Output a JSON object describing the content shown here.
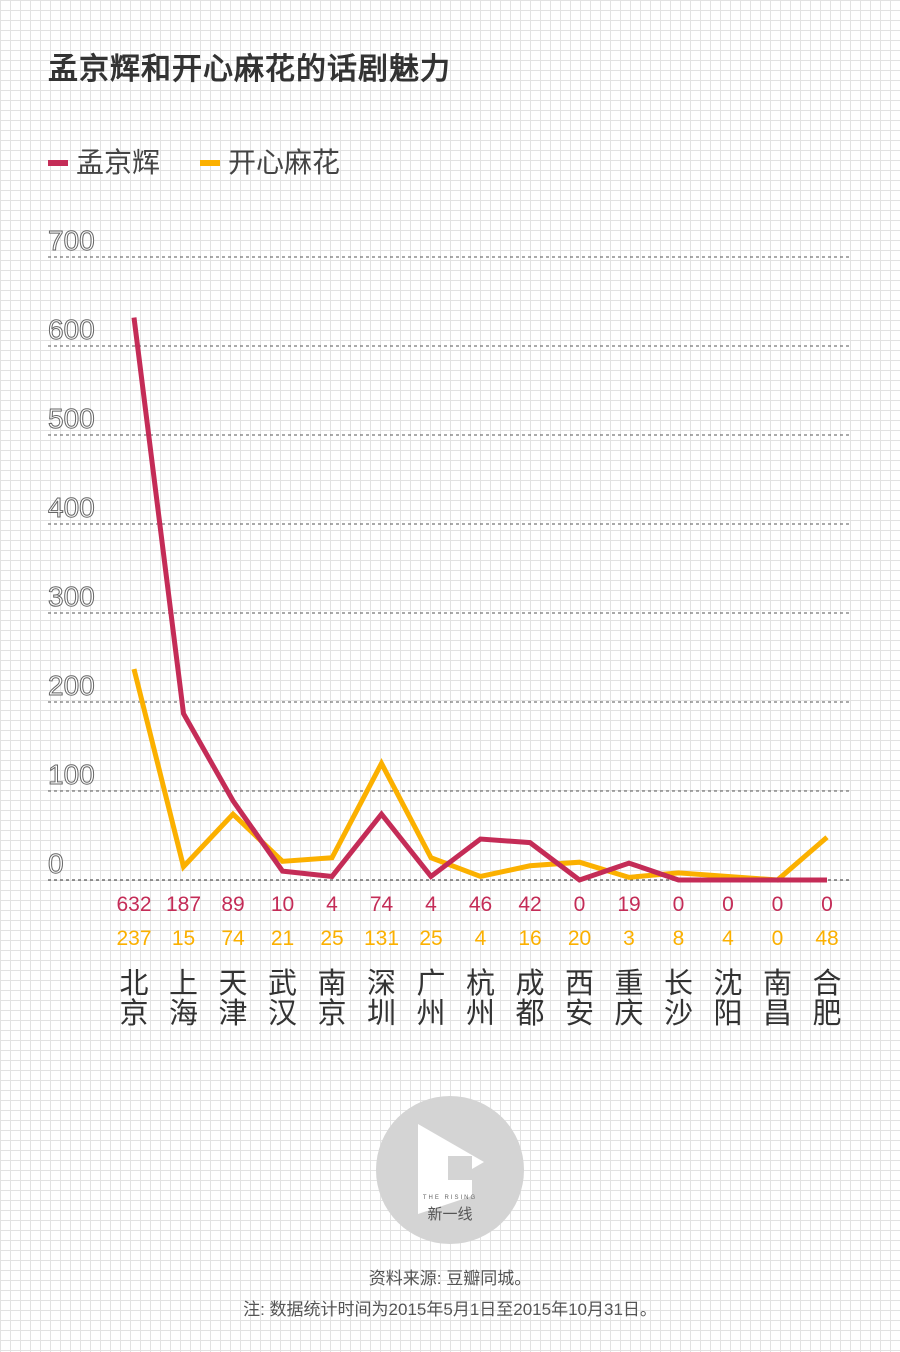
{
  "title": "孟京辉和开心麻花的话剧魅力",
  "legend": [
    {
      "label": "孟京辉",
      "color": "#c42c57"
    },
    {
      "label": "开心麻花",
      "color": "#fbb000"
    }
  ],
  "chart_data": {
    "type": "line",
    "title": "孟京辉和开心麻花的话剧魅力",
    "categories": [
      [
        "北",
        "京"
      ],
      [
        "上",
        "海"
      ],
      [
        "天",
        "津"
      ],
      [
        "武",
        "汉"
      ],
      [
        "南",
        "京"
      ],
      [
        "深",
        "圳"
      ],
      [
        "广",
        "州"
      ],
      [
        "杭",
        "州"
      ],
      [
        "成",
        "都"
      ],
      [
        "西",
        "安"
      ],
      [
        "重",
        "庆"
      ],
      [
        "长",
        "沙"
      ],
      [
        "沈",
        "阳"
      ],
      [
        "南",
        "昌"
      ],
      [
        "合",
        "肥"
      ]
    ],
    "series": [
      {
        "name": "孟京辉",
        "color": "#c42c57",
        "values": [
          632,
          187,
          89,
          10,
          4,
          74,
          4,
          46,
          42,
          0,
          19,
          0,
          0,
          0,
          0
        ]
      },
      {
        "name": "开心麻花",
        "color": "#fbb000",
        "values": [
          237,
          15,
          74,
          21,
          25,
          131,
          25,
          4,
          16,
          20,
          3,
          8,
          4,
          0,
          48
        ]
      }
    ],
    "yticks": [
      0,
      100,
      200,
      300,
      400,
      500,
      600,
      700
    ],
    "ylim": [
      0,
      700
    ],
    "grid": true,
    "legend_position": "top-left"
  },
  "logo": {
    "text": "新一线",
    "subtext": "THE RISING"
  },
  "footer": {
    "source": "资料来源: 豆瓣同城。",
    "note": "注: 数据统计时间为2015年5月1日至2015年10月31日。"
  }
}
